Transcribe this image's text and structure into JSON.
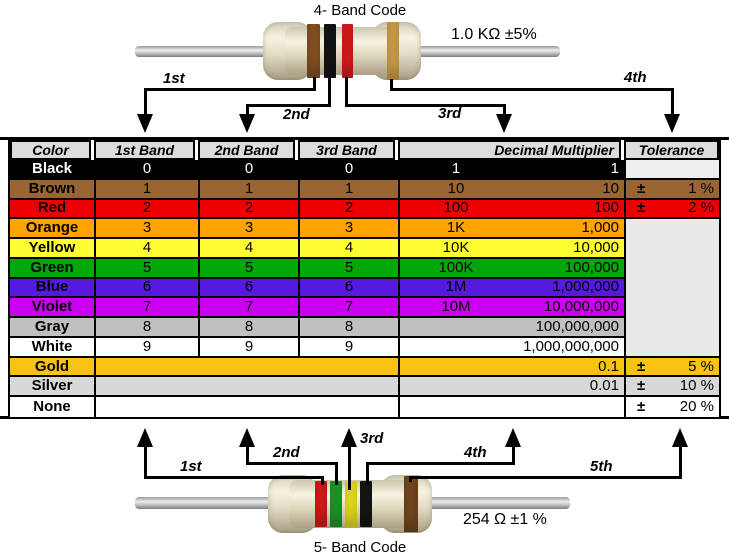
{
  "four_band": {
    "title": "4- Band Code",
    "value_label": "1.0 KΩ  ±5%",
    "arrow_labels": [
      "1st",
      "2nd",
      "3rd",
      "4th"
    ],
    "band_colors": {
      "band1": "#8A5224",
      "band2": "#141414",
      "band3": "#DF1D1D",
      "band4": "#D2A34C"
    }
  },
  "five_band": {
    "title": "5- Band Code",
    "value_label": "254 Ω  ±1 %",
    "arrow_labels": [
      "1st",
      "2nd",
      "3rd",
      "4th",
      "5th"
    ],
    "band_colors": {
      "band1": "#DD1A1A",
      "band2": "#1E9E28",
      "band3": "#EFE424",
      "band4": "#161616",
      "band5": "#74491F"
    }
  },
  "table": {
    "headers": [
      "Color",
      "1st Band",
      "2nd Band",
      "3rd Band",
      "Decimal Multiplier",
      "Tolerance"
    ],
    "header_bg": "#DCDCDC",
    "empty_tolerance_bg": "#E9E9E7",
    "black_tolerance_bg": "#EFEFED",
    "plus_minus": "±",
    "rows": [
      {
        "name": "Black",
        "bg": "#000000",
        "fg": "#FFFFFF",
        "digits": [
          "0",
          "0",
          "0"
        ],
        "mult_short": "1",
        "mult_long": "1",
        "tolerance": null,
        "tol_bg": "#EFEFED"
      },
      {
        "name": "Brown",
        "bg": "#996633",
        "fg": "#000000",
        "digits": [
          "1",
          "1",
          "1"
        ],
        "mult_short": "10",
        "mult_long": "10",
        "tolerance": "1 %",
        "tol_bg": "#996633"
      },
      {
        "name": "Red",
        "bg": "#EE0000",
        "fg": "#000000",
        "digits": [
          "2",
          "2",
          "2"
        ],
        "mult_short": "100",
        "mult_long": "100",
        "tolerance": "2 %",
        "tol_bg": "#EE0000"
      },
      {
        "name": "Orange",
        "bg": "#FFA300",
        "fg": "#000000",
        "digits": [
          "3",
          "3",
          "3"
        ],
        "mult_short": "1K",
        "mult_long": "1,000",
        "tolerance": null,
        "tol_bg": null
      },
      {
        "name": "Yellow",
        "bg": "#FFFF33",
        "fg": "#000000",
        "digits": [
          "4",
          "4",
          "4"
        ],
        "mult_short": "10K",
        "mult_long": "10,000",
        "tolerance": null,
        "tol_bg": null
      },
      {
        "name": "Green",
        "bg": "#00A80B",
        "fg": "#000000",
        "digits": [
          "5",
          "5",
          "5"
        ],
        "mult_short": "100K",
        "mult_long": "100,000",
        "tolerance": null,
        "tol_bg": null
      },
      {
        "name": "Blue",
        "bg": "#5519E0",
        "fg": "#000000",
        "digits": [
          "6",
          "6",
          "6"
        ],
        "mult_short": "1M",
        "mult_long": "1,000,000",
        "tolerance": null,
        "tol_bg": null
      },
      {
        "name": "Violet",
        "bg": "#CC00F0",
        "fg": "#000000",
        "digits": [
          "7",
          "7",
          "7"
        ],
        "mult_short": "10M",
        "mult_long": "10,000,000",
        "tolerance": null,
        "tol_bg": null
      },
      {
        "name": "Gray",
        "bg": "#C0C0C0",
        "fg": "#000000",
        "digits": [
          "8",
          "8",
          "8"
        ],
        "mult_short": "",
        "mult_long": "100,000,000",
        "tolerance": null,
        "tol_bg": null
      },
      {
        "name": "White",
        "bg": "#FFFFFF",
        "fg": "#000000",
        "digits": [
          "9",
          "9",
          "9"
        ],
        "mult_short": "",
        "mult_long": "1,000,000,000",
        "tolerance": null,
        "tol_bg": null
      },
      {
        "name": "Gold",
        "bg": "#F8C211",
        "fg": "#000000",
        "digits": null,
        "mult_short": "",
        "mult_long": "0.1",
        "tolerance": "5 %",
        "tol_bg": "#F8C211"
      },
      {
        "name": "Silver",
        "bg": "#D8D8D8",
        "fg": "#000000",
        "digits": null,
        "mult_short": "",
        "mult_long": "0.01",
        "tolerance": "10 %",
        "tol_bg": "#D8D8D8"
      },
      {
        "name": "None",
        "bg": "#FFFFFF",
        "fg": "#000000",
        "digits": null,
        "mult_short": "",
        "mult_long": "",
        "tolerance": "20 %",
        "tol_bg": "#FFFFFF"
      }
    ]
  }
}
